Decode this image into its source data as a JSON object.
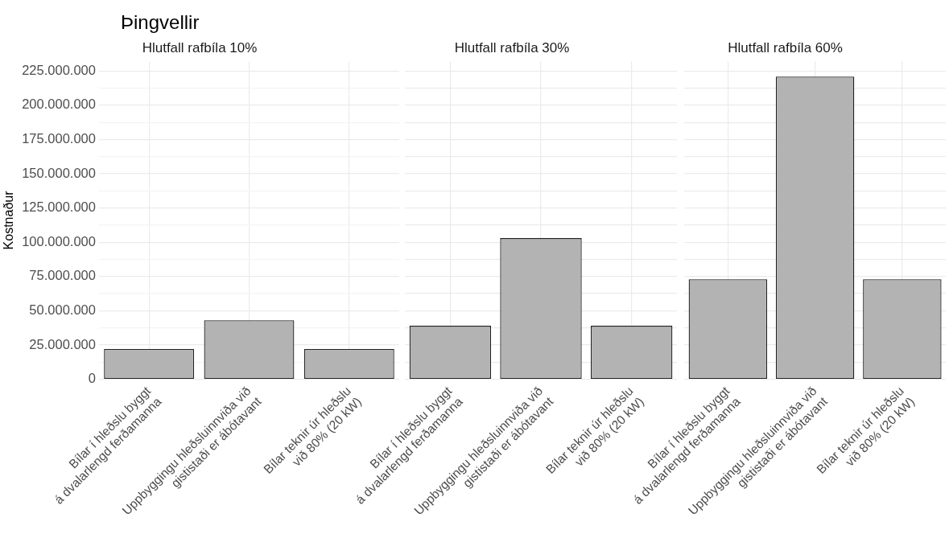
{
  "chart_data": [
    {
      "type": "bar",
      "title": "Þingvellir",
      "subtitle": "Hlutfall rafbíla 10%",
      "ylabel": "Kostnaður",
      "categories": [
        "Bílar í hleðslu byggt\ná dvalarlengd ferðamanna",
        "Uppbyggingu hleðsluinnviða við\ngististaði er ábótavant",
        "Bílar teknir úr hleðslu\nvið 80% (20 kW)"
      ],
      "values": [
        22000000,
        43000000,
        22000000
      ],
      "color": "#b3b3b3",
      "ylim": [
        0,
        232000000
      ],
      "yticks": [
        {
          "value": 0,
          "label": "0"
        },
        {
          "value": 12500000,
          "label": null
        },
        {
          "value": 25000000,
          "label": "25.000.000"
        },
        {
          "value": 37500000,
          "label": null
        },
        {
          "value": 50000000,
          "label": "50.000.000"
        },
        {
          "value": 62500000,
          "label": null
        },
        {
          "value": 75000000,
          "label": "75.000.000"
        },
        {
          "value": 87500000,
          "label": null
        },
        {
          "value": 100000000,
          "label": "100.000.000"
        },
        {
          "value": 112500000,
          "label": null
        },
        {
          "value": 125000000,
          "label": "125.000.000"
        },
        {
          "value": 137500000,
          "label": null
        },
        {
          "value": 150000000,
          "label": "150.000.000"
        },
        {
          "value": 162500000,
          "label": null
        },
        {
          "value": 175000000,
          "label": "175.000.000"
        },
        {
          "value": 187500000,
          "label": null
        },
        {
          "value": 200000000,
          "label": "200.000.000"
        },
        {
          "value": 212500000,
          "label": null
        },
        {
          "value": 225000000,
          "label": "225.000.000"
        }
      ],
      "grid": true
    },
    {
      "type": "bar",
      "subtitle": "Hlutfall rafbíla 30%",
      "categories": [
        "Bílar í hleðslu byggt\ná dvalarlengd ferðamanna",
        "Uppbyggingu hleðsluinnviða við\ngististaði er ábótavant",
        "Bílar teknir úr hleðslu\nvið 80% (20 kW)"
      ],
      "values": [
        39000000,
        103000000,
        39000000
      ],
      "color": "#b3b3b3",
      "ylim": [
        0,
        232000000
      ],
      "yticks": [
        0,
        12500000,
        25000000,
        37500000,
        50000000,
        62500000,
        75000000,
        87500000,
        100000000,
        112500000,
        125000000,
        137500000,
        150000000,
        162500000,
        175000000,
        187500000,
        200000000,
        212500000,
        225000000
      ],
      "grid": true,
      "tick_labels": "x"
    },
    {
      "type": "bar",
      "subtitle": "Hlutfall rafbíla 60%",
      "categories": [
        "Bílar í hleðslu byggt\ná dvalarlengd ferðamanna",
        "Uppbyggingu hleðsluinnviða við\ngististaði er ábótavant",
        "Bílar teknir úr hleðslu\nvið 80% (20 kW)"
      ],
      "values": [
        73000000,
        221000000,
        73000000
      ],
      "color": "#b3b3b3",
      "ylim": [
        0,
        232000000
      ],
      "yticks": [
        0,
        12500000,
        25000000,
        37500000,
        50000000,
        62500000,
        75000000,
        87500000,
        100000000,
        112500000,
        125000000,
        137500000,
        150000000,
        162500000,
        175000000,
        187500000,
        200000000,
        212500000,
        225000000
      ],
      "grid": true,
      "tick_labels": "x"
    }
  ]
}
